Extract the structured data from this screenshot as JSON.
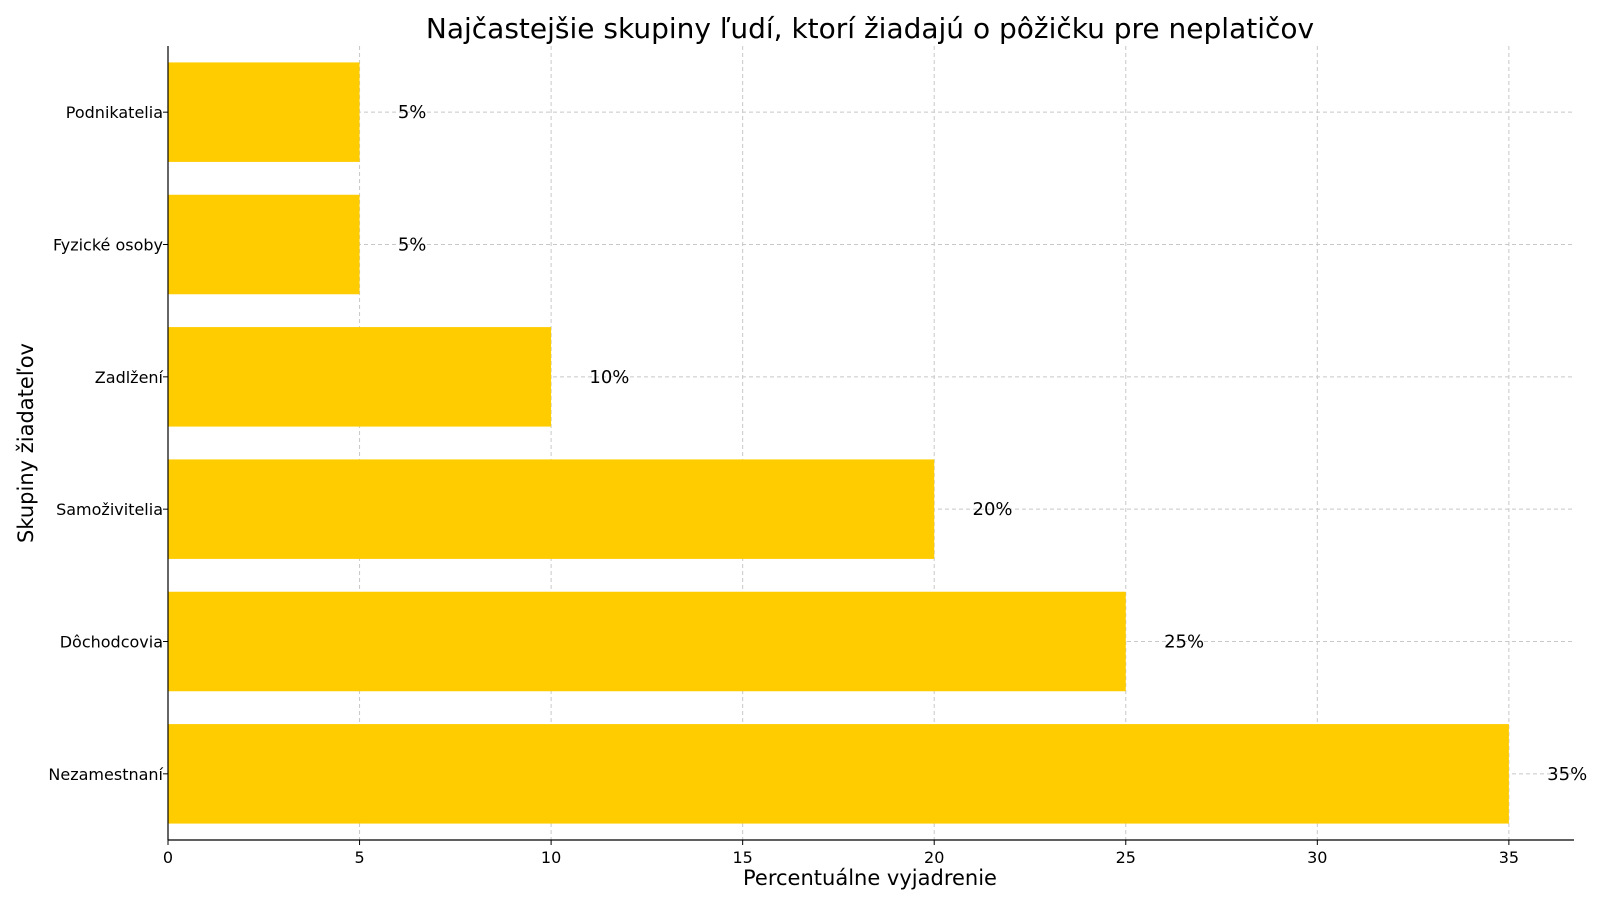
{
  "chart_data": {
    "type": "bar",
    "orientation": "horizontal",
    "title": "Najčastejšie skupiny ľudí, ktorí žiadajú o pôžičku pre neplatičov",
    "xlabel": "Percentuálne vyjadrenie",
    "ylabel": "Skupiny žiadateľov",
    "categories": [
      "Nezamestnaní",
      "Dôchodcovia",
      "Samoživitelia",
      "Zadlžení",
      "Fyzické osoby",
      "Podnikatelia"
    ],
    "values": [
      35,
      25,
      20,
      10,
      5,
      5
    ],
    "data_labels": [
      "35%",
      "25%",
      "20%",
      "10%",
      "5%",
      "5%"
    ],
    "xlim": [
      0,
      36.7
    ],
    "xticks": [
      0,
      5,
      10,
      15,
      20,
      25,
      30,
      35
    ],
    "grid": true,
    "bar_color": "#FFCC00",
    "grid_color": "#C8C8C8"
  }
}
